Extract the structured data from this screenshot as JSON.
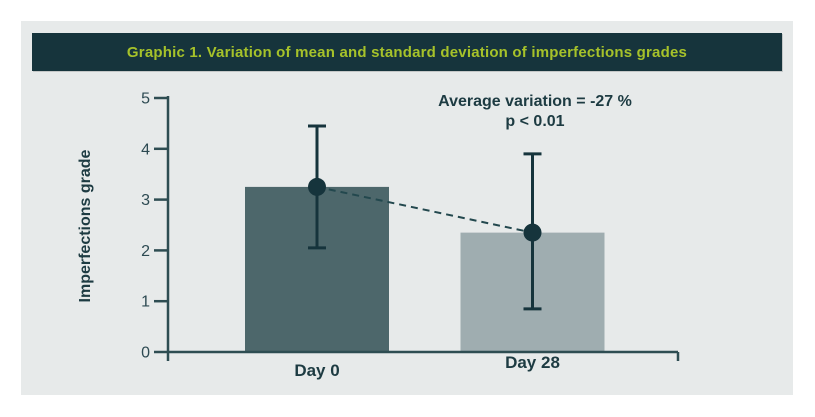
{
  "header": {
    "title": "Graphic 1. Variation of mean and standard deviation of imperfections grades",
    "background": "#16343c",
    "text_color": "#a6c22a"
  },
  "annotation": {
    "line1": "Average variation = -27 %",
    "line2": "p < 0.01"
  },
  "chart_data": {
    "type": "bar",
    "title": "Graphic 1. Variation of mean and standard deviation of imperfections grades",
    "ylabel": "Imperfections grade",
    "xlabel": "",
    "categories": [
      "Day 0",
      "Day 28"
    ],
    "values": [
      3.25,
      2.35
    ],
    "error_upper": [
      4.45,
      3.9
    ],
    "error_lower": [
      2.05,
      0.85
    ],
    "annotations": [
      "Average variation = -27 %",
      "p < 0.01"
    ],
    "ylim": [
      0,
      5
    ],
    "yticks": [
      0,
      1,
      2,
      3,
      4,
      5
    ],
    "grid": "off",
    "legend": "none",
    "bar_colors": [
      "#4d676b",
      "#9fadb0"
    ],
    "marker_color": "#16343c",
    "error_bar_color": "#16343c",
    "connector_color": "#23484e",
    "connector_style": "dashed",
    "axis_color": "#2e4d52",
    "tick_label_color": "#2d4a52",
    "text_color": "#1d3b42",
    "card_background": "#e7eaea"
  }
}
